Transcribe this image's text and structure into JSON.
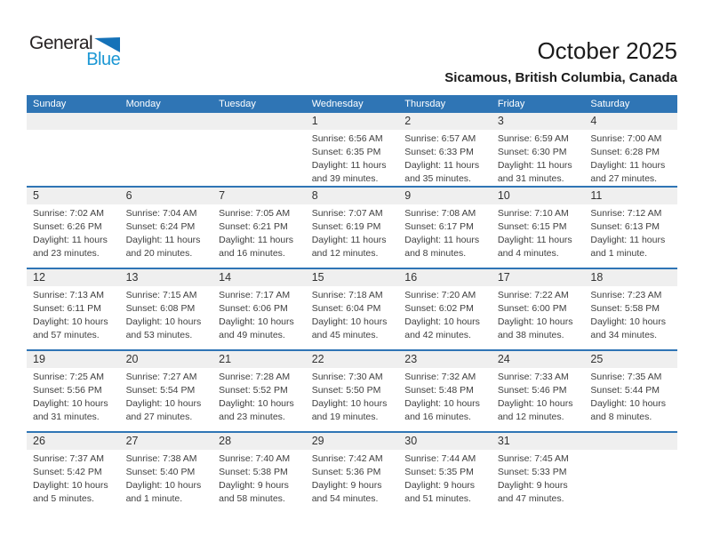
{
  "logo": {
    "part1": "General",
    "part2": "Blue"
  },
  "title": "October 2025",
  "subtitle": "Sicamous, British Columbia, Canada",
  "colors": {
    "header_blue": "#2F75B5",
    "week_divider_blue": "#2F75B5",
    "number_band_gray": "#EFEFEF",
    "logo_triangle_blue": "#1572B8",
    "logo_text_blue": "#1B97D4"
  },
  "weekdays": [
    "Sunday",
    "Monday",
    "Tuesday",
    "Wednesday",
    "Thursday",
    "Friday",
    "Saturday"
  ],
  "weeks": [
    [
      null,
      null,
      null,
      {
        "day": "1",
        "sunrise": "Sunrise: 6:56 AM",
        "sunset": "Sunset: 6:35 PM",
        "daylight": "Daylight: 11 hours and 39 minutes."
      },
      {
        "day": "2",
        "sunrise": "Sunrise: 6:57 AM",
        "sunset": "Sunset: 6:33 PM",
        "daylight": "Daylight: 11 hours and 35 minutes."
      },
      {
        "day": "3",
        "sunrise": "Sunrise: 6:59 AM",
        "sunset": "Sunset: 6:30 PM",
        "daylight": "Daylight: 11 hours and 31 minutes."
      },
      {
        "day": "4",
        "sunrise": "Sunrise: 7:00 AM",
        "sunset": "Sunset: 6:28 PM",
        "daylight": "Daylight: 11 hours and 27 minutes."
      }
    ],
    [
      {
        "day": "5",
        "sunrise": "Sunrise: 7:02 AM",
        "sunset": "Sunset: 6:26 PM",
        "daylight": "Daylight: 11 hours and 23 minutes."
      },
      {
        "day": "6",
        "sunrise": "Sunrise: 7:04 AM",
        "sunset": "Sunset: 6:24 PM",
        "daylight": "Daylight: 11 hours and 20 minutes."
      },
      {
        "day": "7",
        "sunrise": "Sunrise: 7:05 AM",
        "sunset": "Sunset: 6:21 PM",
        "daylight": "Daylight: 11 hours and 16 minutes."
      },
      {
        "day": "8",
        "sunrise": "Sunrise: 7:07 AM",
        "sunset": "Sunset: 6:19 PM",
        "daylight": "Daylight: 11 hours and 12 minutes."
      },
      {
        "day": "9",
        "sunrise": "Sunrise: 7:08 AM",
        "sunset": "Sunset: 6:17 PM",
        "daylight": "Daylight: 11 hours and 8 minutes."
      },
      {
        "day": "10",
        "sunrise": "Sunrise: 7:10 AM",
        "sunset": "Sunset: 6:15 PM",
        "daylight": "Daylight: 11 hours and 4 minutes."
      },
      {
        "day": "11",
        "sunrise": "Sunrise: 7:12 AM",
        "sunset": "Sunset: 6:13 PM",
        "daylight": "Daylight: 11 hours and 1 minute."
      }
    ],
    [
      {
        "day": "12",
        "sunrise": "Sunrise: 7:13 AM",
        "sunset": "Sunset: 6:11 PM",
        "daylight": "Daylight: 10 hours and 57 minutes."
      },
      {
        "day": "13",
        "sunrise": "Sunrise: 7:15 AM",
        "sunset": "Sunset: 6:08 PM",
        "daylight": "Daylight: 10 hours and 53 minutes."
      },
      {
        "day": "14",
        "sunrise": "Sunrise: 7:17 AM",
        "sunset": "Sunset: 6:06 PM",
        "daylight": "Daylight: 10 hours and 49 minutes."
      },
      {
        "day": "15",
        "sunrise": "Sunrise: 7:18 AM",
        "sunset": "Sunset: 6:04 PM",
        "daylight": "Daylight: 10 hours and 45 minutes."
      },
      {
        "day": "16",
        "sunrise": "Sunrise: 7:20 AM",
        "sunset": "Sunset: 6:02 PM",
        "daylight": "Daylight: 10 hours and 42 minutes."
      },
      {
        "day": "17",
        "sunrise": "Sunrise: 7:22 AM",
        "sunset": "Sunset: 6:00 PM",
        "daylight": "Daylight: 10 hours and 38 minutes."
      },
      {
        "day": "18",
        "sunrise": "Sunrise: 7:23 AM",
        "sunset": "Sunset: 5:58 PM",
        "daylight": "Daylight: 10 hours and 34 minutes."
      }
    ],
    [
      {
        "day": "19",
        "sunrise": "Sunrise: 7:25 AM",
        "sunset": "Sunset: 5:56 PM",
        "daylight": "Daylight: 10 hours and 31 minutes."
      },
      {
        "day": "20",
        "sunrise": "Sunrise: 7:27 AM",
        "sunset": "Sunset: 5:54 PM",
        "daylight": "Daylight: 10 hours and 27 minutes."
      },
      {
        "day": "21",
        "sunrise": "Sunrise: 7:28 AM",
        "sunset": "Sunset: 5:52 PM",
        "daylight": "Daylight: 10 hours and 23 minutes."
      },
      {
        "day": "22",
        "sunrise": "Sunrise: 7:30 AM",
        "sunset": "Sunset: 5:50 PM",
        "daylight": "Daylight: 10 hours and 19 minutes."
      },
      {
        "day": "23",
        "sunrise": "Sunrise: 7:32 AM",
        "sunset": "Sunset: 5:48 PM",
        "daylight": "Daylight: 10 hours and 16 minutes."
      },
      {
        "day": "24",
        "sunrise": "Sunrise: 7:33 AM",
        "sunset": "Sunset: 5:46 PM",
        "daylight": "Daylight: 10 hours and 12 minutes."
      },
      {
        "day": "25",
        "sunrise": "Sunrise: 7:35 AM",
        "sunset": "Sunset: 5:44 PM",
        "daylight": "Daylight: 10 hours and 8 minutes."
      }
    ],
    [
      {
        "day": "26",
        "sunrise": "Sunrise: 7:37 AM",
        "sunset": "Sunset: 5:42 PM",
        "daylight": "Daylight: 10 hours and 5 minutes."
      },
      {
        "day": "27",
        "sunrise": "Sunrise: 7:38 AM",
        "sunset": "Sunset: 5:40 PM",
        "daylight": "Daylight: 10 hours and 1 minute."
      },
      {
        "day": "28",
        "sunrise": "Sunrise: 7:40 AM",
        "sunset": "Sunset: 5:38 PM",
        "daylight": "Daylight: 9 hours and 58 minutes."
      },
      {
        "day": "29",
        "sunrise": "Sunrise: 7:42 AM",
        "sunset": "Sunset: 5:36 PM",
        "daylight": "Daylight: 9 hours and 54 minutes."
      },
      {
        "day": "30",
        "sunrise": "Sunrise: 7:44 AM",
        "sunset": "Sunset: 5:35 PM",
        "daylight": "Daylight: 9 hours and 51 minutes."
      },
      {
        "day": "31",
        "sunrise": "Sunrise: 7:45 AM",
        "sunset": "Sunset: 5:33 PM",
        "daylight": "Daylight: 9 hours and 47 minutes."
      },
      null
    ]
  ]
}
